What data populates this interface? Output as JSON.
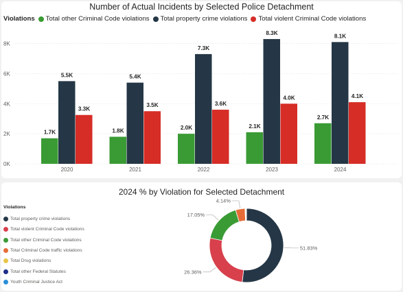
{
  "bar_panel": {
    "title": "Number of Actual Incidents by Selected Police Detachment",
    "legend_title": "Violations"
  },
  "donut_panel": {
    "title": "2024 % by Violation for Selected Detachment",
    "legend_title": "Violations"
  },
  "chart_data": [
    {
      "type": "bar",
      "title": "Number of Actual Incidents by Selected Police Detachment",
      "categories": [
        "2020",
        "2021",
        "2022",
        "2023",
        "2024"
      ],
      "series": [
        {
          "name": "Total other Criminal Code violations",
          "color": "#3a9b35",
          "values": [
            1700,
            1800,
            2000,
            2100,
            2700
          ],
          "labels": [
            "1.7K",
            "1.8K",
            "2.0K",
            "2.1K",
            "2.7K"
          ]
        },
        {
          "name": "Total property crime violations",
          "color": "#253746",
          "values": [
            5500,
            5400,
            7300,
            8300,
            8100
          ],
          "labels": [
            "5.5K",
            "5.4K",
            "7.3K",
            "8.3K",
            "8.1K"
          ]
        },
        {
          "name": "Total violent Criminal Code violations",
          "color": "#d62d27",
          "values": [
            3250,
            3500,
            3600,
            4000,
            4100
          ],
          "labels": [
            "3.3K",
            "3.5K",
            "3.6K",
            "4.0K",
            "4.1K"
          ]
        }
      ],
      "yticks": [
        "0K",
        "2K",
        "4K",
        "6K",
        "8K"
      ],
      "ylim": [
        0,
        8800
      ],
      "grid": true,
      "legend_placement": "top-left"
    },
    {
      "type": "pie",
      "title": "2024 % by Violation for Selected Detachment",
      "donut": true,
      "slices": [
        {
          "name": "Total property crime violations",
          "value": 51.83,
          "label": "51.83%",
          "color": "#253746"
        },
        {
          "name": "Total violent Criminal Code violations",
          "value": 26.36,
          "label": "26.36%",
          "color": "#d8404c"
        },
        {
          "name": "Total other Criminal Code violations",
          "value": 17.05,
          "label": "17.05%",
          "color": "#3a9b35"
        },
        {
          "name": "Total Criminal Code traffic violations",
          "value": 4.14,
          "label": "4.14%",
          "color": "#e66c37"
        },
        {
          "name": "Total Drug violations",
          "value": 0.3,
          "label": "",
          "color": "#e8c547"
        },
        {
          "name": "Total other Federal Statutes",
          "value": 0.2,
          "label": "",
          "color": "#1f2d8a"
        },
        {
          "name": "Youth Criminal Justice Act",
          "value": 0.12,
          "label": "",
          "color": "#2a8fd8"
        }
      ],
      "legend_placement": "left"
    }
  ]
}
